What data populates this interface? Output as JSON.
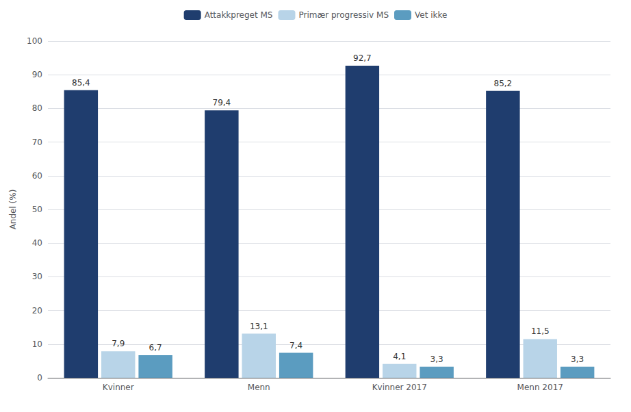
{
  "chart_data": {
    "type": "bar",
    "categories": [
      "Kvinner",
      "Menn",
      "Kvinner 2017",
      "Menn 2017"
    ],
    "series": [
      {
        "name": "Attakkpreget MS",
        "color": "#1F3D6E",
        "values": [
          85.4,
          79.4,
          92.7,
          85.2
        ],
        "value_labels": [
          "85,4",
          "79,4",
          "92,7",
          "85,2"
        ]
      },
      {
        "name": "Primær progressiv MS",
        "color": "#B8D4E8",
        "values": [
          7.9,
          13.1,
          4.1,
          11.5
        ],
        "value_labels": [
          "7,9",
          "13,1",
          "4,1",
          "11,5"
        ]
      },
      {
        "name": "Vet ikke",
        "color": "#5B9CC0",
        "values": [
          6.7,
          7.4,
          3.3,
          3.3
        ],
        "value_labels": [
          "6,7",
          "7,4",
          "3,3",
          "3,3"
        ]
      }
    ],
    "ylabel": "Andel (%)",
    "ylim": [
      0,
      100
    ],
    "yticks": [
      0,
      10,
      20,
      30,
      40,
      50,
      60,
      70,
      80,
      90,
      100
    ],
    "grid": true,
    "legend": "top",
    "data_labels": true
  }
}
